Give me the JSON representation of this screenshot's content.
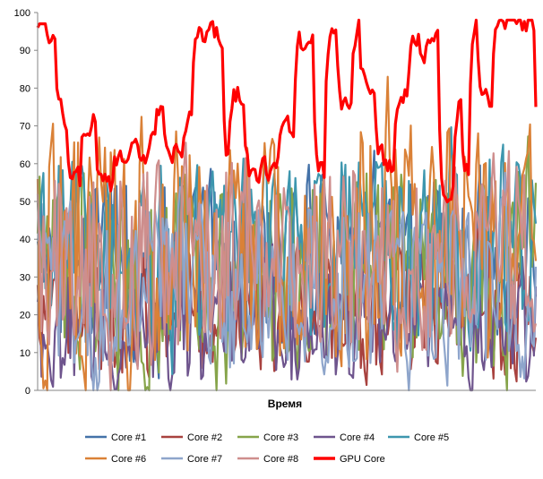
{
  "chart_data": {
    "type": "line",
    "title": "",
    "xlabel": "Время",
    "ylabel": "",
    "ylim": [
      0,
      100
    ],
    "yticks": [
      0,
      10,
      20,
      30,
      40,
      50,
      60,
      70,
      80,
      90,
      100
    ],
    "grid": false,
    "legend_position": "bottom",
    "point_count": 260,
    "series": [
      {
        "name": "Core #1",
        "color": "#4472A8"
      },
      {
        "name": "Core #2",
        "color": "#A8423F"
      },
      {
        "name": "Core #3",
        "color": "#86A44A"
      },
      {
        "name": "Core #4",
        "color": "#6E548D"
      },
      {
        "name": "Core #5",
        "color": "#3D96AE"
      },
      {
        "name": "Core #6",
        "color": "#DA8137"
      },
      {
        "name": "Core #7",
        "color": "#8EA5CB"
      },
      {
        "name": "Core #8",
        "color": "#CE8E8D"
      },
      {
        "name": "GPU Core",
        "color": "#FF0000"
      }
    ]
  }
}
